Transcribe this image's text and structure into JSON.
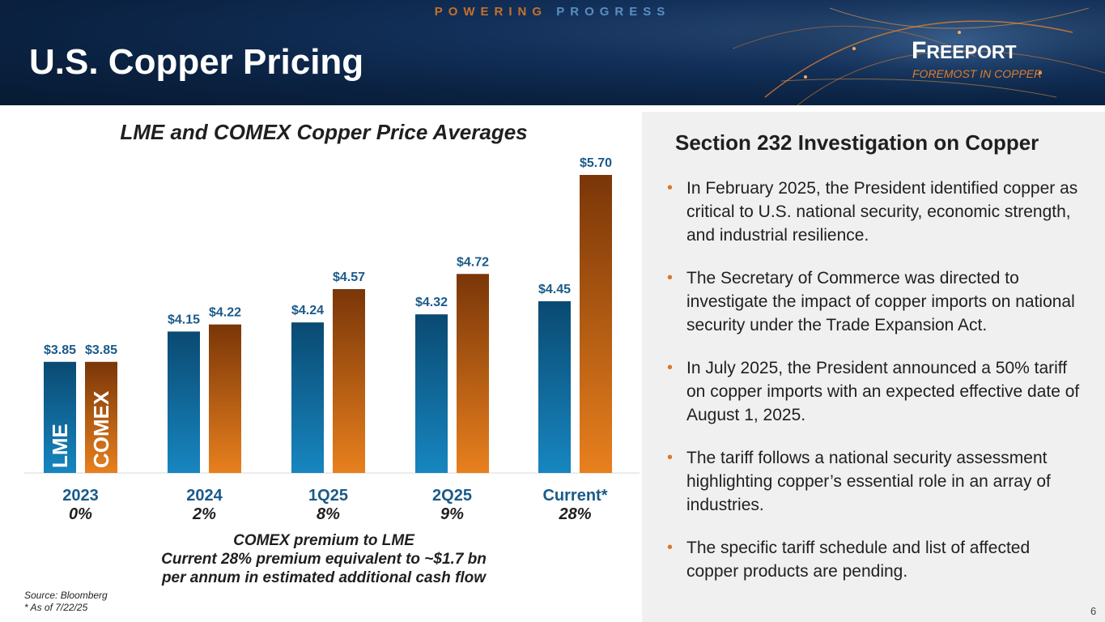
{
  "header": {
    "tagline_part1": "POWERING",
    "tagline_part2": "PROGRESS",
    "title": "U.S. Copper Pricing",
    "logo_first": "F",
    "logo_rest": "REEPORT",
    "logo_tagline": "FOREMOST IN COPPER"
  },
  "chart_data": {
    "type": "bar",
    "title": "LME and COMEX Copper Price Averages",
    "categories": [
      "2023",
      "2024",
      "1Q25",
      "2Q25",
      "Current*"
    ],
    "premiums": [
      "0%",
      "2%",
      "8%",
      "9%",
      "28%"
    ],
    "series": [
      {
        "name": "LME",
        "values": [
          3.85,
          4.15,
          4.24,
          4.32,
          4.45
        ],
        "labels": [
          "$3.85",
          "$4.15",
          "$4.24",
          "$4.32",
          "$4.45"
        ],
        "color_top": "#0a4a72",
        "color_bottom": "#1786c0"
      },
      {
        "name": "COMEX",
        "values": [
          3.85,
          4.22,
          4.57,
          4.72,
          5.7
        ],
        "labels": [
          "$3.85",
          "$4.22",
          "$4.57",
          "$4.72",
          "$5.70"
        ],
        "color_top": "#7a3608",
        "color_bottom": "#e8801e"
      }
    ],
    "ylim": [
      2.75,
      5.7
    ],
    "label_color": "#1a5a8a",
    "category_color": "#1a5a8a"
  },
  "note": {
    "line1": "COMEX premium to LME",
    "line2": "Current 28% premium equivalent to ~$1.7 bn",
    "line3": "per annum in estimated additional cash flow"
  },
  "source": {
    "line1": "Source: Bloomberg",
    "line2": "* As of 7/22/25"
  },
  "page_number": "6",
  "section": {
    "title": "Section 232 Investigation on Copper",
    "bullets": [
      "In February 2025, the President identified copper as critical to U.S. national security, economic strength, and industrial resilience.",
      "The Secretary of Commerce was directed to investigate the impact of copper imports on national security under the Trade Expansion Act.",
      "In July 2025, the President announced a 50% tariff on copper imports with an expected effective date of August 1, 2025.",
      "The tariff follows a national security assessment highlighting copper’s essential role in an array of industries.",
      "The specific tariff schedule and list of affected copper products are pending."
    ]
  }
}
